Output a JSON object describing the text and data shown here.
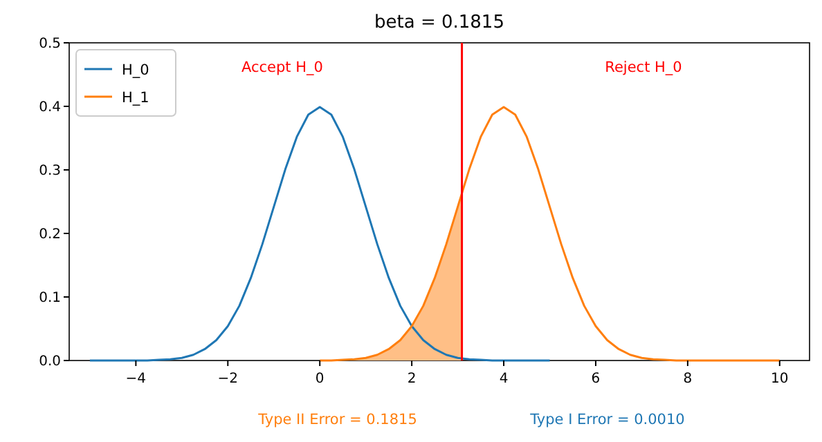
{
  "chart_data": {
    "type": "line",
    "title": "beta = 0.1815",
    "x": [
      -5,
      -4.75,
      -4.5,
      -4.25,
      -4,
      -3.75,
      -3.5,
      -3.25,
      -3,
      -2.75,
      -2.5,
      -2.25,
      -2,
      -1.75,
      -1.5,
      -1.25,
      -1,
      -0.75,
      -0.5,
      -0.25,
      0,
      0.25,
      0.5,
      0.75,
      1,
      1.25,
      1.5,
      1.75,
      2,
      2.25,
      2.5,
      2.75,
      3,
      3.25,
      3.5,
      3.75,
      4,
      4.25,
      4.5,
      4.75,
      5,
      5.25,
      5.5,
      5.75,
      6,
      6.25,
      6.5,
      6.75,
      7,
      7.25,
      7.5,
      7.75,
      8,
      8.25,
      8.5,
      8.75,
      9,
      9.25,
      9.5,
      9.75,
      10
    ],
    "series": [
      {
        "name": "H_0",
        "color": "#1f77b4",
        "values": [
          0,
          0,
          0,
          0,
          0,
          0,
          0.001,
          0.002,
          0.004,
          0.009,
          0.018,
          0.032,
          0.054,
          0.086,
          0.13,
          0.183,
          0.242,
          0.301,
          0.352,
          0.387,
          0.399,
          0.387,
          0.352,
          0.301,
          0.242,
          0.183,
          0.13,
          0.086,
          0.054,
          0.032,
          0.018,
          0.009,
          0.004,
          0.002,
          0.001,
          0,
          0,
          0,
          0,
          0,
          0,
          null,
          null,
          null,
          null,
          null,
          null,
          null,
          null,
          null,
          null,
          null,
          null,
          null,
          null,
          null,
          null,
          null,
          null,
          null,
          null
        ]
      },
      {
        "name": "H_1",
        "color": "#ff7f0e",
        "values": [
          null,
          null,
          null,
          null,
          null,
          null,
          null,
          null,
          null,
          null,
          null,
          null,
          null,
          null,
          null,
          null,
          null,
          null,
          null,
          null,
          0,
          0,
          0.001,
          0.002,
          0.004,
          0.009,
          0.018,
          0.032,
          0.054,
          0.086,
          0.13,
          0.183,
          0.242,
          0.301,
          0.352,
          0.387,
          0.399,
          0.387,
          0.352,
          0.301,
          0.242,
          0.183,
          0.13,
          0.086,
          0.054,
          0.032,
          0.018,
          0.009,
          0.004,
          0.002,
          0.001,
          0,
          0,
          0,
          0,
          0,
          0,
          0,
          0,
          0,
          0
        ]
      },
      {
        "type": "area",
        "color": "#ffbf86",
        "x": [
          0,
          0.25,
          0.5,
          0.75,
          1,
          1.25,
          1.5,
          1.75,
          2,
          2.25,
          2.5,
          2.75,
          3,
          3.09
        ],
        "values": [
          0,
          0,
          0.001,
          0.002,
          0.004,
          0.009,
          0.018,
          0.032,
          0.054,
          0.086,
          0.13,
          0.183,
          0.242,
          0.264
        ]
      }
    ],
    "xlim": [
      -5.45,
      10.65
    ],
    "xticks": [
      -4,
      -2,
      0,
      2,
      4,
      6,
      8,
      10
    ],
    "ylim": [
      0,
      0.5
    ],
    "yticks": [
      {
        "value": 0,
        "label": "0.0"
      },
      0.1,
      0.2,
      0.3,
      0.4,
      0.5
    ],
    "ref_lines": [
      {
        "axis": "x",
        "value": 3.09,
        "color": "#ff0000"
      }
    ],
    "annotations": [
      "Accept H_0",
      "Reject H_0",
      "Type II Error = 0.1815",
      "Type I Error = 0.0010"
    ],
    "legend": "top left",
    "grid": false
  }
}
